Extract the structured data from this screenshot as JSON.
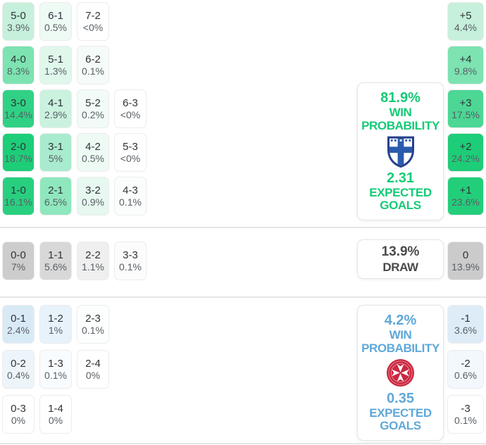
{
  "colors": {
    "home_accent": "#14cb76",
    "away_accent": "#5fa8d8",
    "draw_text": "#4a4a4a"
  },
  "home_section": {
    "grid_rows": [
      [
        {
          "score": "5-0",
          "pct": "3.9%",
          "bg": "#c6f0db"
        },
        {
          "score": "6-1",
          "pct": "0.5%",
          "bg": "#eefaf4"
        },
        {
          "score": "7-2",
          "pct": "<0%",
          "bg": "#ffffff"
        }
      ],
      [
        {
          "score": "4-0",
          "pct": "8.3%",
          "bg": "#7ce3b1"
        },
        {
          "score": "5-1",
          "pct": "1.3%",
          "bg": "#e0f7ec"
        },
        {
          "score": "6-2",
          "pct": "0.1%",
          "bg": "#f5fbf8"
        }
      ],
      [
        {
          "score": "3-0",
          "pct": "14.4%",
          "bg": "#30d184"
        },
        {
          "score": "4-1",
          "pct": "2.9%",
          "bg": "#cbf2df"
        },
        {
          "score": "5-2",
          "pct": "0.2%",
          "bg": "#f2fbf7"
        },
        {
          "score": "6-3",
          "pct": "<0%",
          "bg": "#ffffff"
        }
      ],
      [
        {
          "score": "2-0",
          "pct": "18.7%",
          "bg": "#1ecd78"
        },
        {
          "score": "3-1",
          "pct": "5%",
          "bg": "#a9ebce"
        },
        {
          "score": "4-2",
          "pct": "0.5%",
          "bg": "#eefaf4"
        },
        {
          "score": "5-3",
          "pct": "<0%",
          "bg": "#ffffff"
        }
      ],
      [
        {
          "score": "1-0",
          "pct": "16.1%",
          "bg": "#28cf7f"
        },
        {
          "score": "2-1",
          "pct": "6.5%",
          "bg": "#8fe7be"
        },
        {
          "score": "3-2",
          "pct": "0.9%",
          "bg": "#e6f8f0"
        },
        {
          "score": "4-3",
          "pct": "0.1%",
          "bg": "#fbfdfc"
        }
      ]
    ],
    "margins": [
      {
        "label": "+5",
        "pct": "4.4%",
        "bg": "#c6f0db"
      },
      {
        "label": "+4",
        "pct": "9.8%",
        "bg": "#7ce3b1"
      },
      {
        "label": "+3",
        "pct": "17.5%",
        "bg": "#4cd795"
      },
      {
        "label": "+2",
        "pct": "24.2%",
        "bg": "#1ecd78"
      },
      {
        "label": "+1",
        "pct": "23.6%",
        "bg": "#23ce7b"
      }
    ],
    "panel": {
      "win_pct": "81.9%",
      "win_label": "WIN PROBABILITY",
      "xg": "2.31",
      "xg_label": "EXPECTED GOALS",
      "crest": "finland-crest"
    }
  },
  "draw_section": {
    "row": [
      {
        "score": "0-0",
        "pct": "7%",
        "bg": "#cdcdcd"
      },
      {
        "score": "1-1",
        "pct": "5.6%",
        "bg": "#d8d8d8"
      },
      {
        "score": "2-2",
        "pct": "1.1%",
        "bg": "#efefef"
      },
      {
        "score": "3-3",
        "pct": "0.1%",
        "bg": "#fcfcfc"
      }
    ],
    "panel": {
      "pct": "13.9%",
      "label": "DRAW"
    },
    "margin": {
      "label": "0",
      "pct": "13.9%",
      "bg": "#cbcbcb"
    }
  },
  "away_section": {
    "grid_rows": [
      [
        {
          "score": "0-1",
          "pct": "2.4%",
          "bg": "#d9eaf7"
        },
        {
          "score": "1-2",
          "pct": "1%",
          "bg": "#e8f2fb"
        },
        {
          "score": "2-3",
          "pct": "0.1%",
          "bg": "#fdfefe"
        }
      ],
      [
        {
          "score": "0-2",
          "pct": "0.4%",
          "bg": "#edf5fb"
        },
        {
          "score": "1-3",
          "pct": "0.1%",
          "bg": "#f9fcfe"
        },
        {
          "score": "2-4",
          "pct": "0%",
          "bg": "#ffffff"
        }
      ],
      [
        {
          "score": "0-3",
          "pct": "0%",
          "bg": "#ffffff"
        },
        {
          "score": "1-4",
          "pct": "0%",
          "bg": "#ffffff"
        }
      ]
    ],
    "margins": [
      {
        "label": "-1",
        "pct": "3.6%",
        "bg": "#ddecf7"
      },
      {
        "label": "-2",
        "pct": "0.6%",
        "bg": "#f2f8fd"
      },
      {
        "label": "-3",
        "pct": "0.1%",
        "bg": "#ffffff"
      }
    ],
    "panel": {
      "win_pct": "4.2%",
      "win_label": "WIN PROBABILITY",
      "xg": "0.35",
      "xg_label": "EXPECTED GOALS",
      "crest": "malta-crest"
    }
  }
}
